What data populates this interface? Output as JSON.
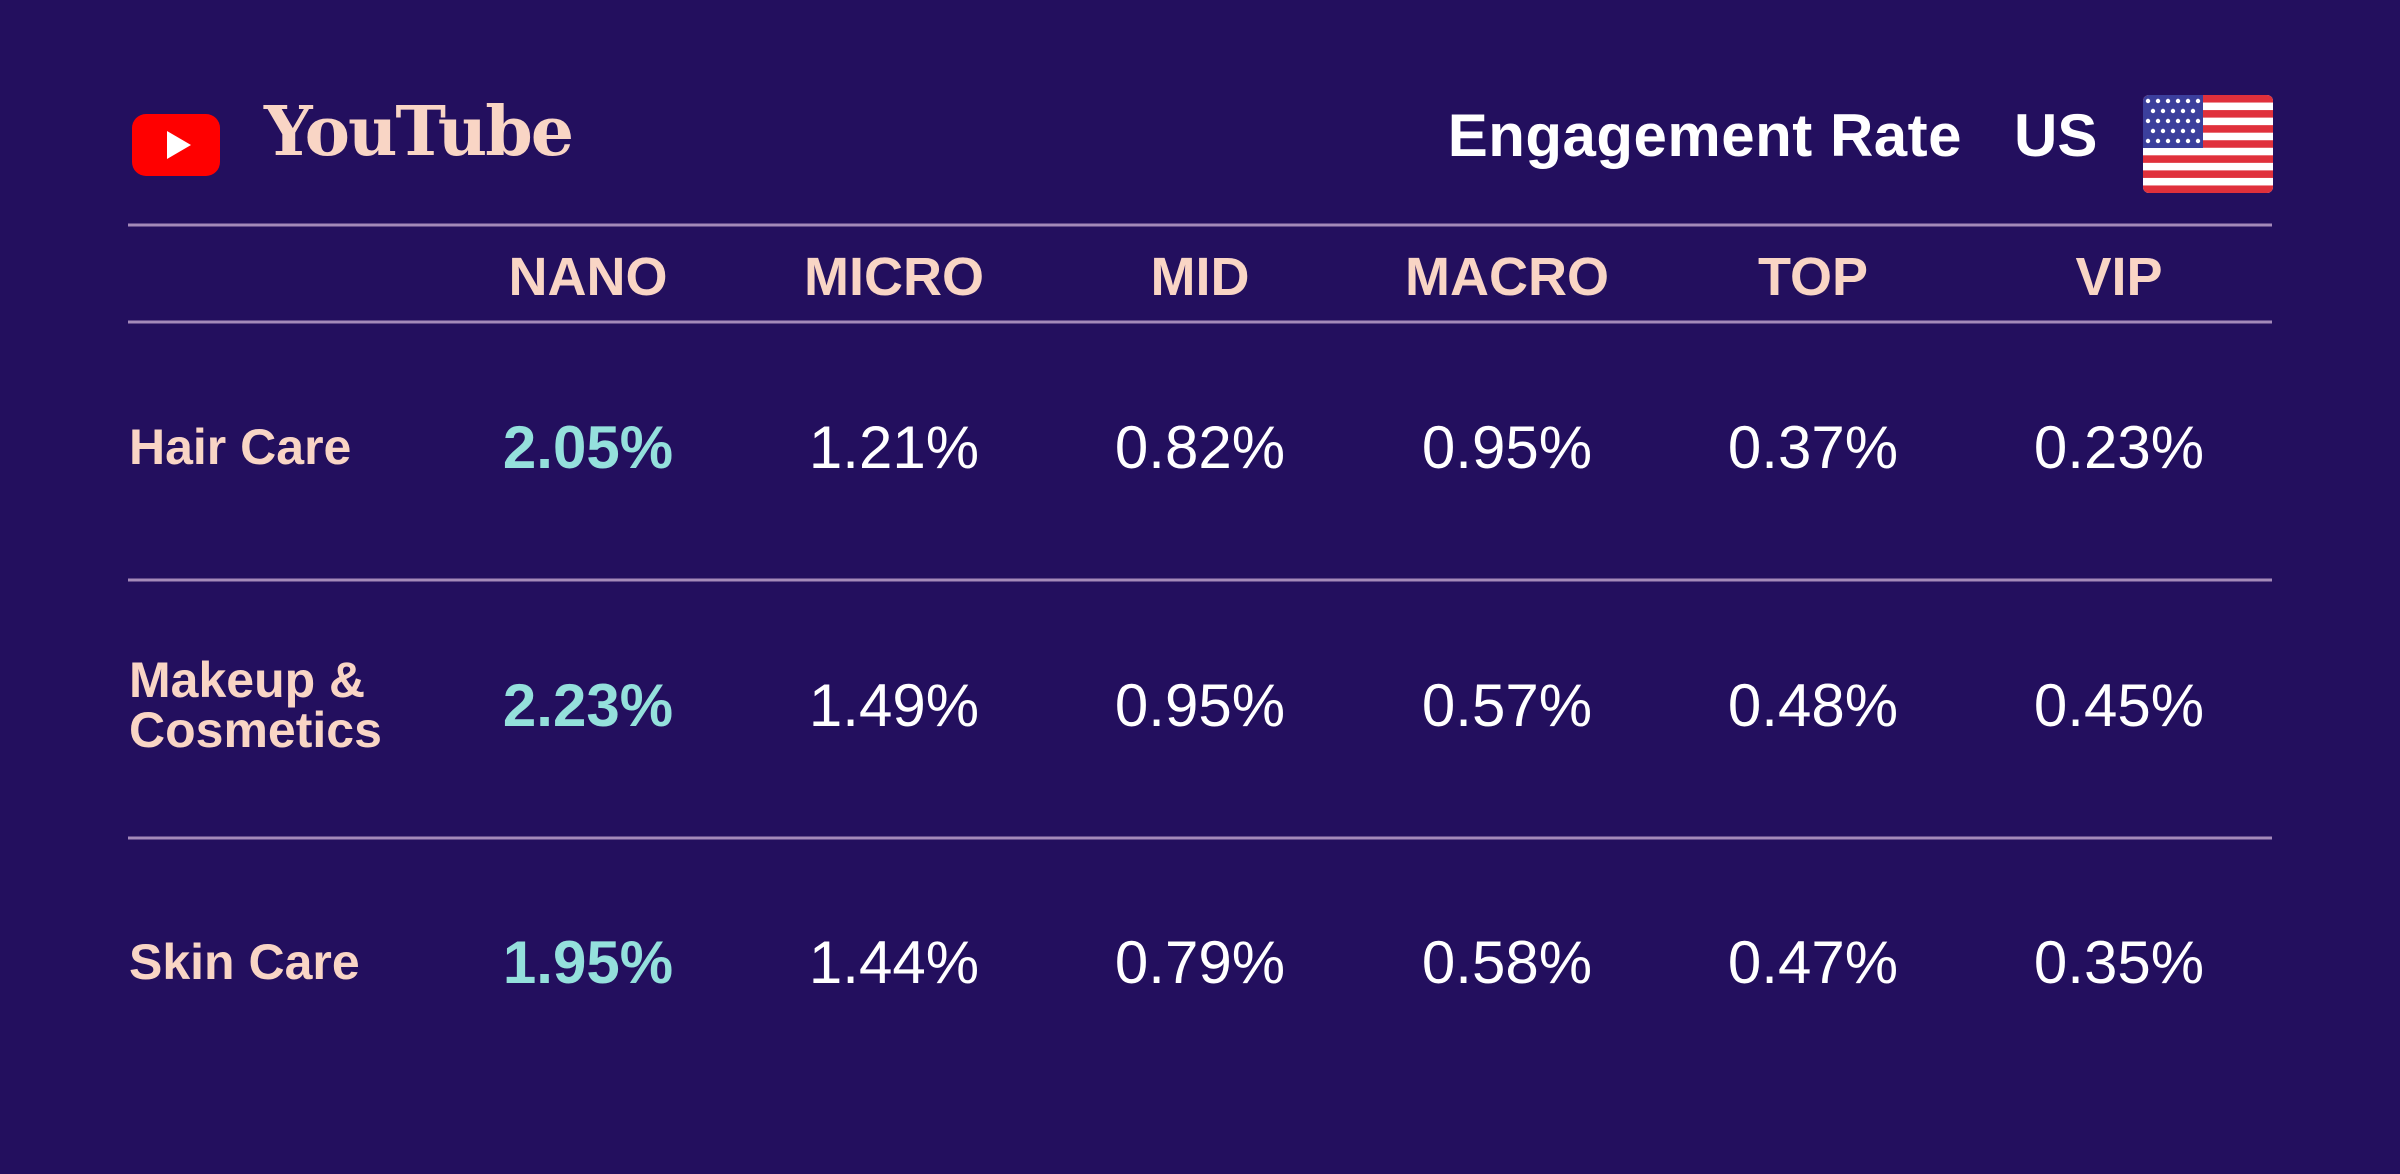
{
  "header": {
    "platform": "YouTube",
    "metric": "Engagement Rate",
    "country": "US",
    "logo_icon": "youtube-play-icon",
    "flag_icon": "us-flag-icon"
  },
  "colors": {
    "background": "#230f5e",
    "label": "#f9d5c5",
    "value": "#ffffff",
    "highlight": "#94e0dc",
    "youtube_red": "#ff0000",
    "divider": "#a48ab9"
  },
  "chart_data": {
    "type": "table",
    "title": "Engagement Rate",
    "columns": [
      "NANO",
      "MICRO",
      "MID",
      "MACRO",
      "TOP",
      "VIP"
    ],
    "rows": [
      {
        "label": [
          "Hair Care"
        ],
        "values": [
          "2.05%",
          "1.21%",
          "0.82%",
          "0.95%",
          "0.37%",
          "0.23%"
        ]
      },
      {
        "label": [
          "Makeup &",
          "Cosmetics"
        ],
        "values": [
          "2.23%",
          "1.49%",
          "0.95%",
          "0.57%",
          "0.48%",
          "0.45%"
        ]
      },
      {
        "label": [
          "Skin Care"
        ],
        "values": [
          "1.95%",
          "1.44%",
          "0.79%",
          "0.58%",
          "0.47%",
          "0.35%"
        ]
      }
    ],
    "highlight_column": 0
  }
}
